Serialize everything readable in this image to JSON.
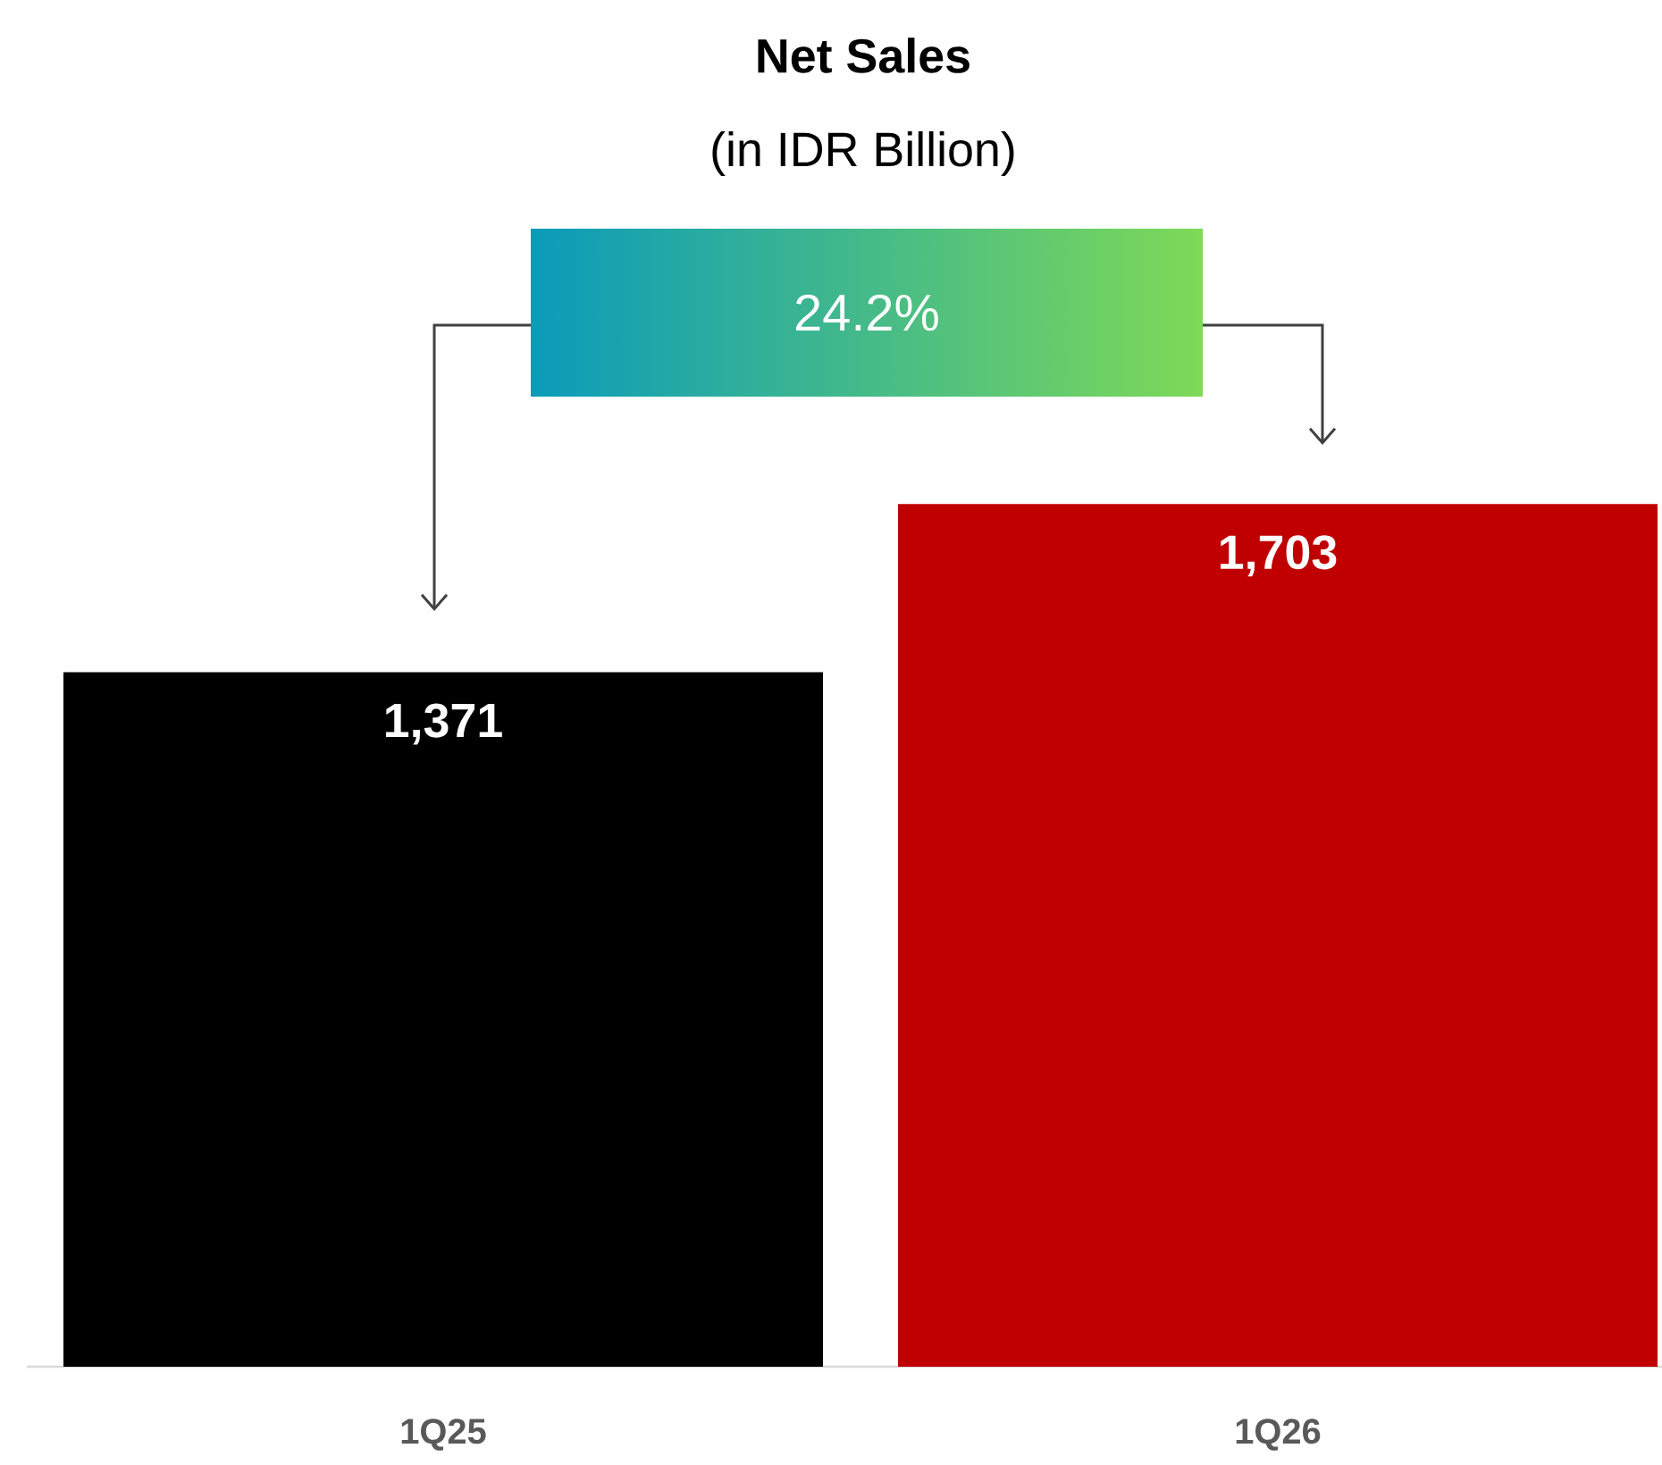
{
  "chart_data": {
    "type": "bar",
    "title": "Net Sales",
    "subtitle": "(in IDR Billion)",
    "categories": [
      "1Q25",
      "1Q26"
    ],
    "values": [
      1371,
      1703
    ],
    "colors": [
      "#000000",
      "#c00000"
    ],
    "value_labels": [
      "1,371",
      "1,703"
    ],
    "annotations": [
      "24.2%"
    ]
  }
}
